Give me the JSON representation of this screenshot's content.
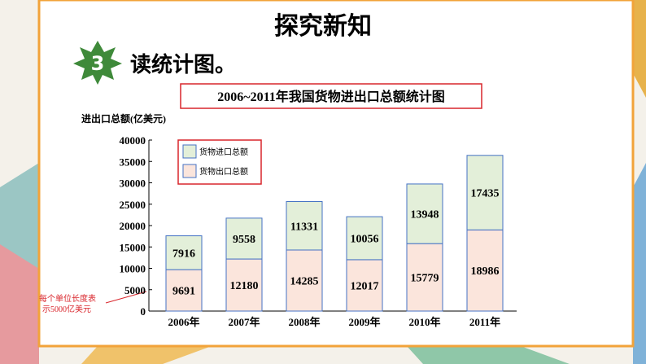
{
  "slide": {
    "title": "探究新知",
    "number": "3",
    "heading": "读统计图。"
  },
  "chart_data": {
    "type": "stacked_bar",
    "title": "2006~2011年我国货物进出口总额统计图",
    "y_label": "进出口总额(亿美元)",
    "annotation": [
      "每个单位长度表",
      "示5000亿美元"
    ],
    "categories": [
      "2006年",
      "2007年",
      "2008年",
      "2009年",
      "2010年",
      "2011年"
    ],
    "series": [
      {
        "name": "货物进口总额",
        "color": "#e3efd9",
        "values": [
          7916,
          9558,
          11331,
          10056,
          13948,
          17435
        ]
      },
      {
        "name": "货物出口总额",
        "color": "#fbe5dc",
        "values": [
          9691,
          12180,
          14285,
          12017,
          15779,
          18986
        ]
      }
    ],
    "ylim": [
      0,
      40000
    ],
    "yticks": [
      0,
      5000,
      10000,
      15000,
      20000,
      25000,
      30000,
      35000,
      40000
    ]
  }
}
